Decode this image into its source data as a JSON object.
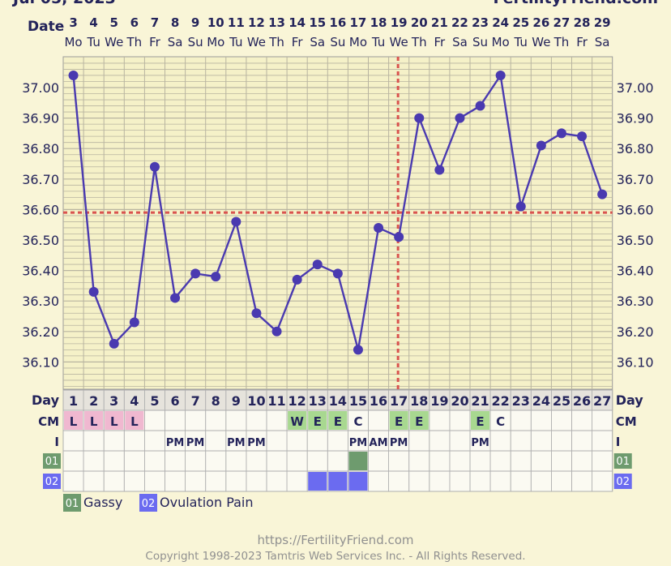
{
  "header": {
    "date_partial": "Jul 05, 2023",
    "site_partial": "FertilityFriend.com",
    "date_label": "Date"
  },
  "chart_data": {
    "type": "line",
    "title": "",
    "dates": [
      "3",
      "4",
      "5",
      "6",
      "7",
      "8",
      "9",
      "10",
      "11",
      "12",
      "13",
      "14",
      "15",
      "16",
      "17",
      "18",
      "19",
      "20",
      "21",
      "22",
      "23",
      "24",
      "25",
      "26",
      "27",
      "28",
      "29"
    ],
    "weekdays": [
      "Mo",
      "Tu",
      "We",
      "Th",
      "Fr",
      "Sa",
      "Su",
      "Mo",
      "Tu",
      "We",
      "Th",
      "Fr",
      "Sa",
      "Su",
      "Mo",
      "Tu",
      "We",
      "Th",
      "Fr",
      "Sa",
      "Su",
      "Mo",
      "Tu",
      "We",
      "Th",
      "Fr",
      "Sa"
    ],
    "cycle_days": [
      "1",
      "2",
      "3",
      "4",
      "5",
      "6",
      "7",
      "8",
      "9",
      "10",
      "11",
      "12",
      "13",
      "14",
      "15",
      "16",
      "17",
      "18",
      "19",
      "20",
      "21",
      "22",
      "23",
      "24",
      "25",
      "26",
      "27"
    ],
    "temperatures": [
      37.04,
      36.33,
      36.16,
      36.23,
      36.74,
      36.31,
      36.39,
      36.38,
      36.56,
      36.26,
      36.2,
      36.37,
      36.42,
      36.39,
      36.14,
      36.54,
      36.51,
      36.9,
      36.73,
      36.9,
      36.94,
      37.04,
      36.61,
      36.81,
      36.85,
      36.84,
      36.65
    ],
    "y_ticks": [
      "37.00",
      "36.90",
      "36.80",
      "36.70",
      "36.60",
      "36.50",
      "36.40",
      "36.30",
      "36.20",
      "36.10"
    ],
    "ylim": [
      36.05,
      37.07
    ],
    "coverline": 36.59,
    "ovulation_day_index": 16,
    "grid": true,
    "day_row_label": "Day",
    "cm_row_label": "CM",
    "i_row_label": "I",
    "cm": [
      "L",
      "L",
      "L",
      "L",
      "",
      "",
      "",
      "",
      "",
      "",
      "",
      "W",
      "E",
      "E",
      "C",
      "",
      "E",
      "E",
      "",
      "",
      "E",
      "C",
      "",
      "",
      "",
      "",
      ""
    ],
    "intercourse": [
      "",
      "",
      "",
      "",
      "",
      "PM",
      "PM",
      "",
      "PM",
      "PM",
      "",
      "",
      "",
      "",
      "PM",
      "AM",
      "PM",
      "",
      "",
      "",
      "PM",
      "",
      "",
      "",
      "",
      "",
      ""
    ],
    "symptom_rows": [
      {
        "code": "01",
        "marked": [
          14
        ]
      },
      {
        "code": "02",
        "marked": [
          12,
          13,
          14
        ]
      }
    ],
    "legend": [
      {
        "code": "01",
        "label": "Gassy",
        "color": "#6e9b6e"
      },
      {
        "code": "02",
        "label": "Ovulation Pain",
        "color": "#6b6bf0"
      }
    ]
  },
  "colors": {
    "background": "#f9f5d7",
    "plot_bg": "#f5f1c8",
    "grid": "#b8b4a0",
    "line": "#4a3ab0",
    "marker": "#4a3ab0",
    "coverline": "#d9534f",
    "text": "#23235a",
    "cm_L": "#f0b8d0",
    "cm_green": "#a8d890",
    "symptom1": "#6e9b6e",
    "symptom2": "#6b6bf0"
  },
  "footer": {
    "url": "https://FertilityFriend.com",
    "copyright": "Copyright 1998-2023 Tamtris Web Services Inc. - All Rights Reserved."
  }
}
